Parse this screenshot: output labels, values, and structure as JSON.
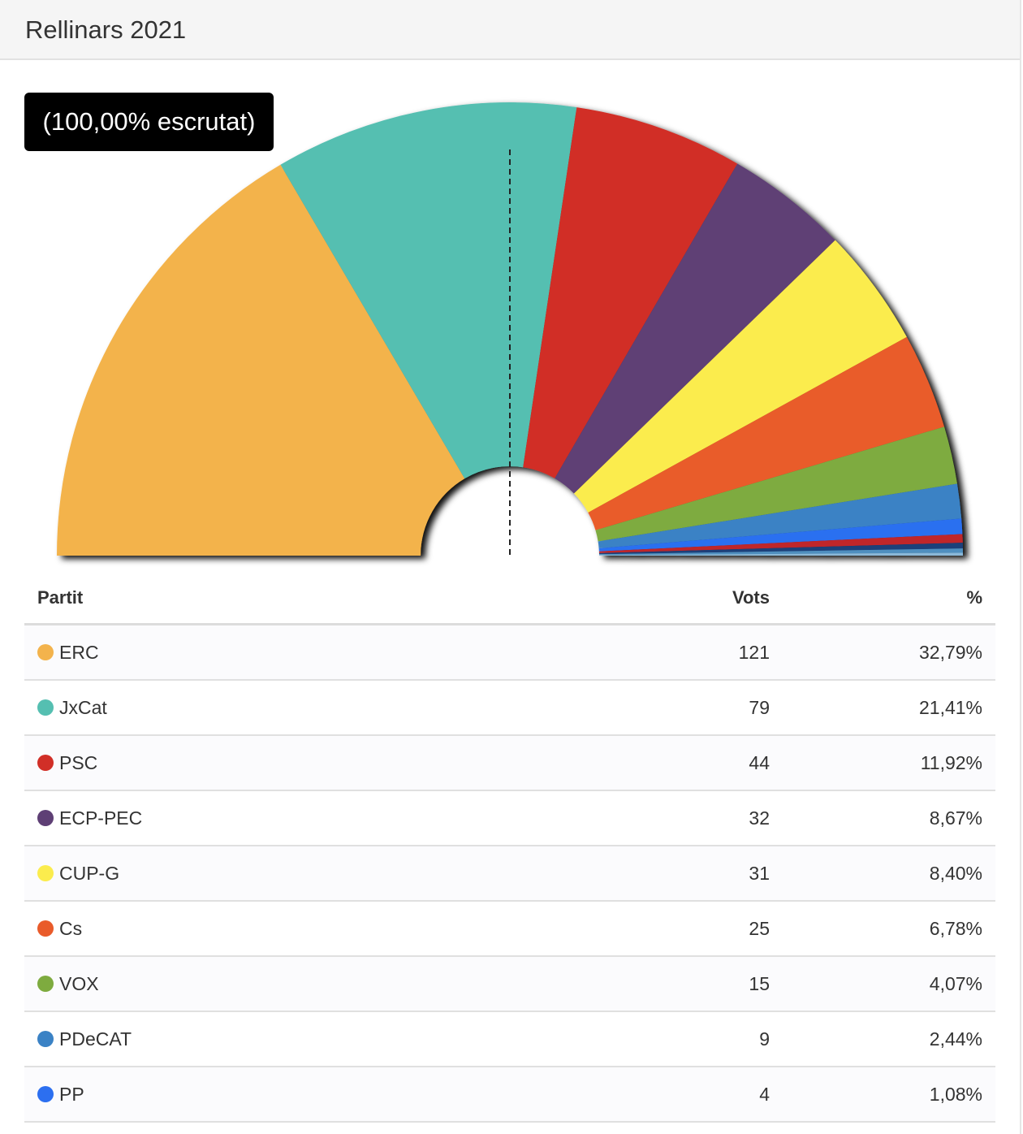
{
  "header": {
    "title": "Rellinars 2021"
  },
  "badge": {
    "label": "(100,00% escrutat)"
  },
  "colors": {
    "ERC": "#f3b34c",
    "JxCat": "#55bfb1",
    "PSC": "#d12f27",
    "ECP-PEC": "#5e3f75",
    "CUP-G": "#fbec4d",
    "Cs": "#e95b2a",
    "VOX": "#7eab3f",
    "PDeCAT": "#3a82c5",
    "PP": "#2c6ff0"
  },
  "table": {
    "headers": {
      "party": "Partit",
      "votes": "Vots",
      "pct": "%"
    },
    "rows": [
      {
        "party": "ERC",
        "votes": "121",
        "pct": "32,79%"
      },
      {
        "party": "JxCat",
        "votes": "79",
        "pct": "21,41%"
      },
      {
        "party": "PSC",
        "votes": "44",
        "pct": "11,92%"
      },
      {
        "party": "ECP-PEC",
        "votes": "32",
        "pct": "8,67%"
      },
      {
        "party": "CUP-G",
        "votes": "31",
        "pct": "8,40%"
      },
      {
        "party": "Cs",
        "votes": "25",
        "pct": "6,78%"
      },
      {
        "party": "VOX",
        "votes": "15",
        "pct": "4,07%"
      },
      {
        "party": "PDeCAT",
        "votes": "9",
        "pct": "2,44%"
      },
      {
        "party": "PP",
        "votes": "4",
        "pct": "1,08%"
      }
    ]
  },
  "chart_data": {
    "type": "pie",
    "subtype": "semicircle-donut",
    "categories": [
      "ERC",
      "JxCat",
      "PSC",
      "ECP-PEC",
      "CUP-G",
      "Cs",
      "VOX",
      "PDeCAT",
      "PP",
      "",
      "",
      "",
      ""
    ],
    "values": [
      32.79,
      21.41,
      11.92,
      8.67,
      8.4,
      6.78,
      4.07,
      2.44,
      1.08,
      0.6,
      0.4,
      0.3,
      0.2
    ],
    "slice_colors": [
      "#f3b34c",
      "#55bfb1",
      "#d12f27",
      "#5e3f75",
      "#fbec4d",
      "#e95b2a",
      "#7eab3f",
      "#3a82c5",
      "#2c6ff0",
      "#c0262b",
      "#1a3f7a",
      "#4f8fbf",
      "#8ab8d8"
    ],
    "majority_line": true
  }
}
